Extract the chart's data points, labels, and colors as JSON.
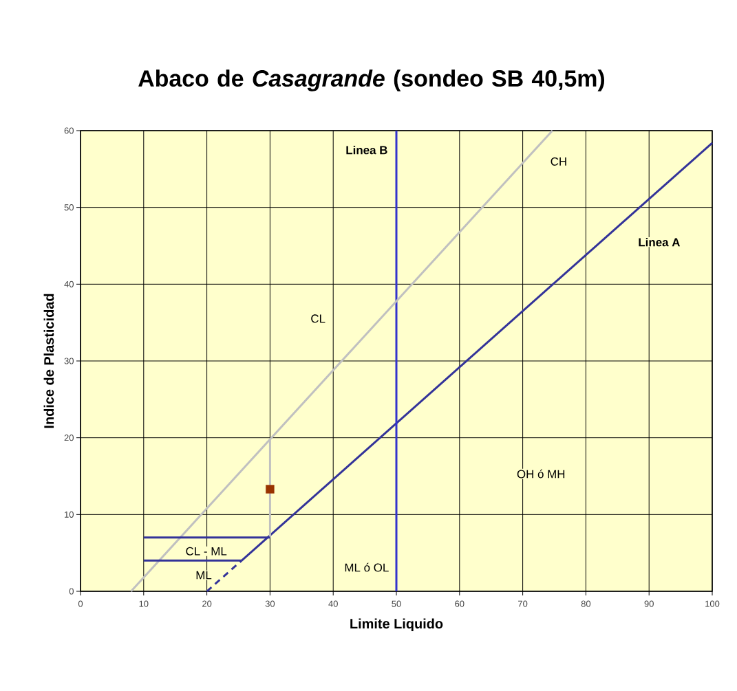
{
  "chart_data": {
    "type": "line",
    "title": "Abaco de *Casagrande* (sondeo SB 40,5m)",
    "xlabel": "Limite Liquido",
    "ylabel": "Indice de Plasticidad",
    "xlim": [
      0,
      100
    ],
    "ylim": [
      0,
      60
    ],
    "xticks": [
      0,
      10,
      20,
      30,
      40,
      50,
      60,
      70,
      80,
      90,
      100
    ],
    "yticks": [
      0,
      10,
      20,
      30,
      40,
      50,
      60
    ],
    "grid": true,
    "series": [
      {
        "color": "#333399",
        "x": [
          25.5,
          100
        ],
        "values": [
          4,
          58.4
        ]
      },
      {
        "color": "#333399",
        "line_style": "dashed",
        "x": [
          20,
          25.5
        ],
        "values": [
          0,
          4
        ]
      },
      {
        "color": "#3333cc",
        "x": [
          50,
          50
        ],
        "values": [
          0,
          60
        ]
      },
      {
        "color": "#c0c0c0",
        "x": [
          8,
          74.7
        ],
        "values": [
          0,
          60
        ]
      },
      {
        "color": "#c0c0c0",
        "x": [
          30,
          30
        ],
        "values": [
          7,
          19.8
        ]
      },
      {
        "color": "#333399",
        "x": [
          10,
          30
        ],
        "values": [
          7,
          7
        ]
      },
      {
        "color": "#333399",
        "x": [
          10,
          25.5
        ],
        "values": [
          4,
          4
        ]
      },
      {
        "type": "scatter",
        "color": "#993300",
        "marker": "square",
        "x": [
          30
        ],
        "values": [
          13.3
        ]
      }
    ],
    "annotations": [
      "**Linea B**",
      "CH",
      "**Linea A**",
      "CL",
      "OH ó MH",
      "CL - ML",
      "ML",
      "ML ó OL"
    ]
  }
}
